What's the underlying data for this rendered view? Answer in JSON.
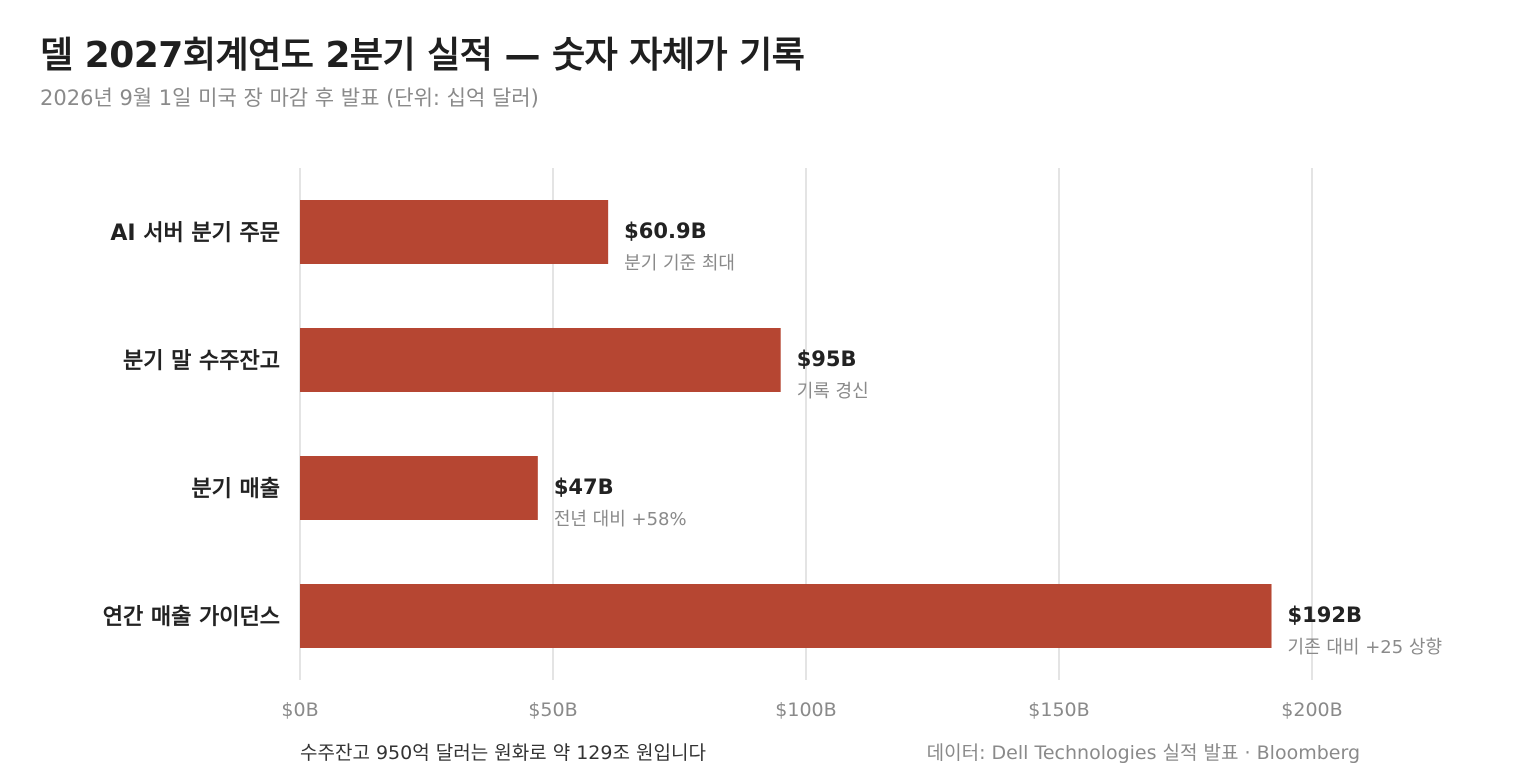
{
  "title": "델 2027회계연도 2분기 실적 — 숫자 자체가 기록",
  "subtitle": "2026년 9월 1일 미국 장 마감 후 발표 (단위: 십억 달러)",
  "footnote": "수주잔고 950억 달러는 원화로 약 129조 원입니다",
  "source": "데이터: Dell Technologies 실적 발표 · Bloomberg",
  "colors": {
    "bar": "#b64632",
    "grid": "#dcdcdc",
    "label": "#222222",
    "annotation": "#8a8a8a",
    "tick": "#8a8a8a"
  },
  "chart_data": {
    "type": "bar",
    "orientation": "horizontal",
    "categories": [
      "AI 서버 분기 주문",
      "분기 말 수주잔고",
      "분기 매출",
      "연간 매출 가이던스"
    ],
    "values": [
      60.9,
      95,
      47,
      192
    ],
    "value_labels": [
      "$60.9B",
      "$95B",
      "$47B",
      "$192B"
    ],
    "annotations": [
      "분기 기준 최대",
      "기록 경신",
      "전년 대비 +58%",
      "기존 대비 +25 상향"
    ],
    "x_ticks": [
      0,
      50,
      100,
      150,
      200
    ],
    "x_tick_labels": [
      "$0B",
      "$50B",
      "$100B",
      "$150B",
      "$200B"
    ],
    "xlim": [
      0,
      200
    ],
    "grid": "vertical"
  }
}
